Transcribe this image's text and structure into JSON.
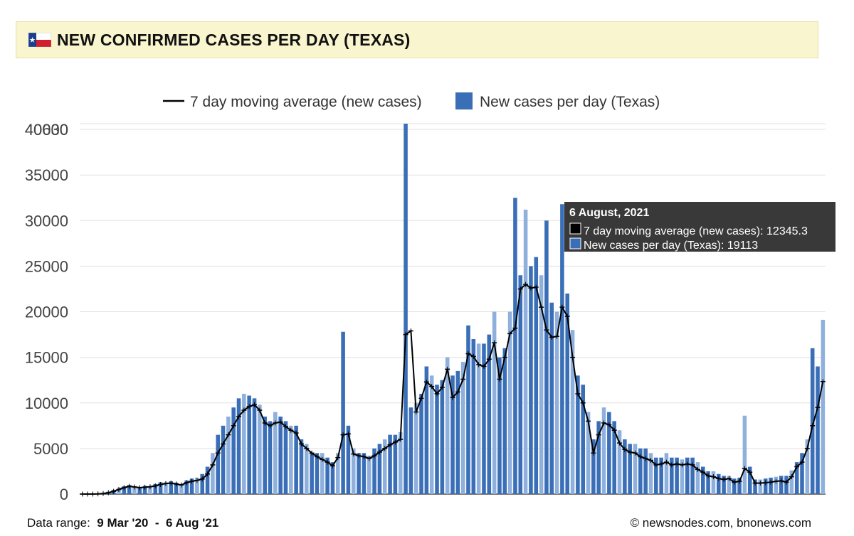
{
  "header": {
    "flag_icon": "texas-flag-icon",
    "title": "NEW CONFIRMED CASES PER DAY (TEXAS)"
  },
  "colors": {
    "bar": "#3a6fb8",
    "bar_light": "#8fb0dc",
    "line": "#000000",
    "header_bg": "#f8f5cf",
    "grid": "#e0e0e0",
    "tooltip_bg": "#333333"
  },
  "legend": {
    "line_label": "7 day moving average (new cases)",
    "bar_label": "New cases per day (Texas)"
  },
  "tooltip": {
    "date": "6 August, 2021",
    "line_text": "7 day moving average (new cases): 12345.3",
    "bar_text": "New cases per day (Texas): 19113"
  },
  "footer": {
    "range_label": "Data range:",
    "range_start": "9 Mar '20",
    "range_sep": "-",
    "range_end": "6 Aug '21",
    "credit": "© newsnodes.com, bnonews.com"
  },
  "chart_data": {
    "type": "bar",
    "x_start": "2020-03-09",
    "x_end": "2021-08-06",
    "ylim": [
      0,
      40630
    ],
    "y_ticks": [
      0,
      5000,
      10000,
      15000,
      20000,
      25000,
      30000,
      35000,
      40000
    ],
    "y_max_label": "40630",
    "grid": true,
    "legend_position": "top",
    "series": [
      {
        "name": "7 day moving average (new cases)",
        "type": "line",
        "values": [
          0,
          0,
          0,
          20,
          60,
          150,
          300,
          500,
          700,
          850,
          780,
          700,
          750,
          800,
          900,
          1050,
          1150,
          1200,
          1100,
          1000,
          1250,
          1400,
          1500,
          1650,
          2200,
          3200,
          4500,
          5500,
          6500,
          7500,
          8500,
          9200,
          9600,
          9800,
          9200,
          7800,
          7500,
          7800,
          7900,
          7400,
          7000,
          6700,
          5500,
          5000,
          4500,
          4100,
          3800,
          3500,
          3100,
          4000,
          6500,
          6600,
          4400,
          4200,
          4100,
          3900,
          4200,
          4600,
          5000,
          5400,
          5700,
          6000,
          17500,
          17900,
          9000,
          10500,
          12300,
          11800,
          11000,
          11700,
          13700,
          10600,
          11200,
          12600,
          15400,
          15100,
          14200,
          14000,
          14800,
          16600,
          12600,
          15000,
          17600,
          18200,
          22500,
          23000,
          22600,
          22700,
          20500,
          18000,
          17200,
          17300,
          20500,
          19500,
          15000,
          11000,
          10000,
          8000,
          4500,
          6500,
          7800,
          7600,
          7000,
          5600,
          4900,
          4600,
          4500,
          4100,
          3900,
          3700,
          3200,
          3300,
          3500,
          3200,
          3300,
          3200,
          3300,
          3200,
          2700,
          2400,
          2000,
          1900,
          1700,
          1600,
          1700,
          1300,
          1400,
          2800,
          2400,
          1200,
          1200,
          1250,
          1300,
          1400,
          1450,
          1300,
          1900,
          3000,
          3500,
          5000,
          7500,
          9500,
          12345.3
        ]
      },
      {
        "name": "New cases per day (Texas)",
        "type": "bar",
        "values": [
          0,
          0,
          0,
          30,
          100,
          250,
          450,
          700,
          850,
          1000,
          800,
          700,
          900,
          850,
          1100,
          1300,
          1300,
          1400,
          1250,
          1100,
          1500,
          1700,
          1800,
          2200,
          3000,
          4500,
          6500,
          7500,
          8500,
          9500,
          10500,
          11000,
          10800,
          10500,
          9800,
          8500,
          8000,
          9000,
          8500,
          8000,
          7500,
          7500,
          6000,
          5500,
          4500,
          4500,
          4500,
          4000,
          3500,
          4500,
          17800,
          7500,
          5000,
          4500,
          4500,
          4200,
          5000,
          5500,
          6000,
          6500,
          6500,
          6800,
          40630,
          9500,
          10000,
          11000,
          14000,
          13000,
          12000,
          12500,
          15000,
          13000,
          13500,
          14500,
          18500,
          17000,
          16500,
          16500,
          17500,
          20000,
          15000,
          16000,
          20000,
          32500,
          24000,
          31200,
          25000,
          26000,
          24000,
          30000,
          21000,
          20000,
          31800,
          22000,
          18000,
          13000,
          12000,
          9000,
          6000,
          8000,
          9500,
          9000,
          8000,
          7000,
          6000,
          5500,
          5500,
          5000,
          5000,
          4500,
          4000,
          4000,
          4500,
          4000,
          4000,
          3800,
          4000,
          4000,
          3500,
          3000,
          2500,
          2500,
          2200,
          2000,
          2000,
          1700,
          1800,
          8600,
          3000,
          1600,
          1600,
          1700,
          1800,
          1900,
          2000,
          2000,
          2600,
          3500,
          4500,
          6000,
          16000,
          14000,
          19113
        ]
      }
    ]
  }
}
